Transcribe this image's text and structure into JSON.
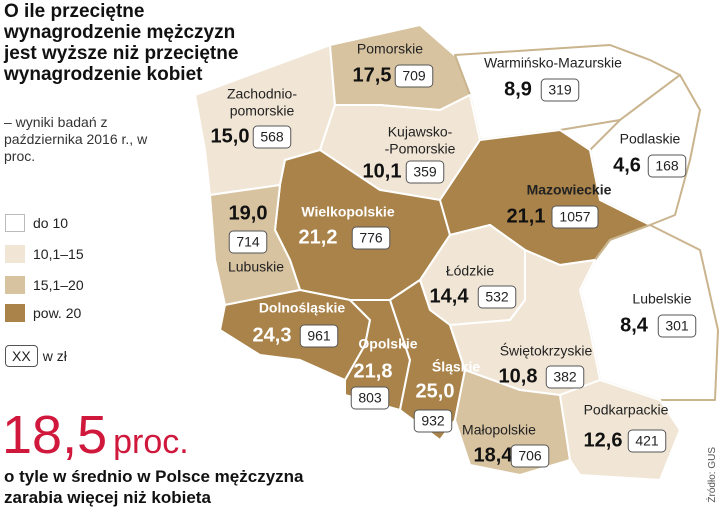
{
  "title": "O ile przeciętne wynagrodzenie mężczyzn jest wyższe niż przeciętne wynagrodzenie kobiet",
  "subtitle": "– wyniki badań z października 2016 r., w proc.",
  "legend": [
    "do 10",
    "10,1–15",
    "15,1–20",
    "pow. 20"
  ],
  "unit_legend": {
    "box": "XX",
    "label": "w zł"
  },
  "regions": [
    {
      "name": [
        "Pomorskie"
      ],
      "pct": "17,5",
      "pln": "709"
    },
    {
      "name": [
        "Warmińsko-Mazurskie"
      ],
      "pct": "8,9",
      "pln": "319"
    },
    {
      "name": [
        "Zachodnio-",
        "pomorskie"
      ],
      "pct": "15,0",
      "pln": "568"
    },
    {
      "name": [
        "Kujawsko-",
        "-Pomorskie"
      ],
      "pct": "10,1",
      "pln": "359"
    },
    {
      "name": [
        "Podlaskie"
      ],
      "pct": "4,6",
      "pln": "168"
    },
    {
      "name": [
        "Mazowieckie"
      ],
      "pct": "21,1",
      "pln": "1057"
    },
    {
      "name": [
        "Wielkopolskie"
      ],
      "pct": "21,2",
      "pln": "776"
    },
    {
      "name": [
        "Lubuskie"
      ],
      "pct": "19,0",
      "pln": "714"
    },
    {
      "name": [
        "Łódzkie"
      ],
      "pct": "14,4",
      "pln": "532"
    },
    {
      "name": [
        "Lubelskie"
      ],
      "pct": "8,4",
      "pln": "301"
    },
    {
      "name": [
        "Dolnośląskie"
      ],
      "pct": "24,3",
      "pln": "961"
    },
    {
      "name": [
        "Opolskie"
      ],
      "pct": "21,8",
      "pln": "803"
    },
    {
      "name": [
        "Śląskie"
      ],
      "pct": "25,0",
      "pln": "932"
    },
    {
      "name": [
        "Świętokrzyskie"
      ],
      "pct": "10,8",
      "pln": "382"
    },
    {
      "name": [
        "Małopolskie"
      ],
      "pct": "18,4",
      "pln": "706"
    },
    {
      "name": [
        "Podkarpackie"
      ],
      "pct": "12,6",
      "pln": "421"
    }
  ],
  "highlight": {
    "value": "18,5",
    "unit": "proc.",
    "text": "o tyle w średnio w Polsce mężczyzna zarabia więcej niż kobieta"
  },
  "source": "Źródło: GUS"
}
